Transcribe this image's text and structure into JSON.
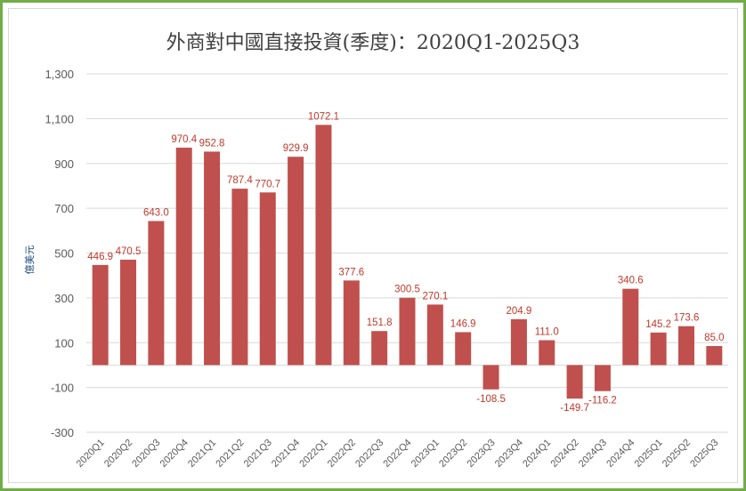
{
  "chart_data": {
    "type": "bar",
    "title": "外商對中國直接投資(季度)：2020Q1-2025Q3",
    "ylabel": "億美元",
    "xlabel": "",
    "ylim": [
      -300,
      1300
    ],
    "yticks": [
      "-300",
      "-100",
      "100",
      "300",
      "500",
      "700",
      "900",
      "1,100",
      "1,300"
    ],
    "ytick_values": [
      -300,
      -100,
      100,
      300,
      500,
      700,
      900,
      1100,
      1300
    ],
    "grid": true,
    "bar_color": "#c0504d",
    "label_color": "#c0392b",
    "border_color": "#70ad47",
    "categories": [
      "2020Q1",
      "2020Q2",
      "2020Q3",
      "2020Q4",
      "2021Q1",
      "2021Q2",
      "2021Q3",
      "2021Q4",
      "2022Q1",
      "2022Q2",
      "2022Q3",
      "2022Q4",
      "2023Q1",
      "2023Q2",
      "2023Q3",
      "2023Q4",
      "2024Q1",
      "2024Q2",
      "2024Q3",
      "2024Q4",
      "2025Q1",
      "2025Q2",
      "2025Q3"
    ],
    "values": [
      446.9,
      470.5,
      643.0,
      970.4,
      952.8,
      787.4,
      770.7,
      929.9,
      1072.1,
      377.6,
      151.8,
      300.5,
      270.1,
      146.9,
      -108.5,
      204.9,
      111.0,
      -149.7,
      -116.2,
      340.6,
      145.2,
      173.6,
      85.0
    ],
    "data_labels": [
      "446.9",
      "470.5",
      "643.0",
      "970.4",
      "952.8",
      "787.4",
      "770.7",
      "929.9",
      "1072.1",
      "377.6",
      "151.8",
      "300.5",
      "270.1",
      "146.9",
      "-108.5",
      "204.9",
      "111.0",
      "-149.7",
      "-116.2",
      "340.6",
      "145.2",
      "173.6",
      "85.0"
    ]
  }
}
